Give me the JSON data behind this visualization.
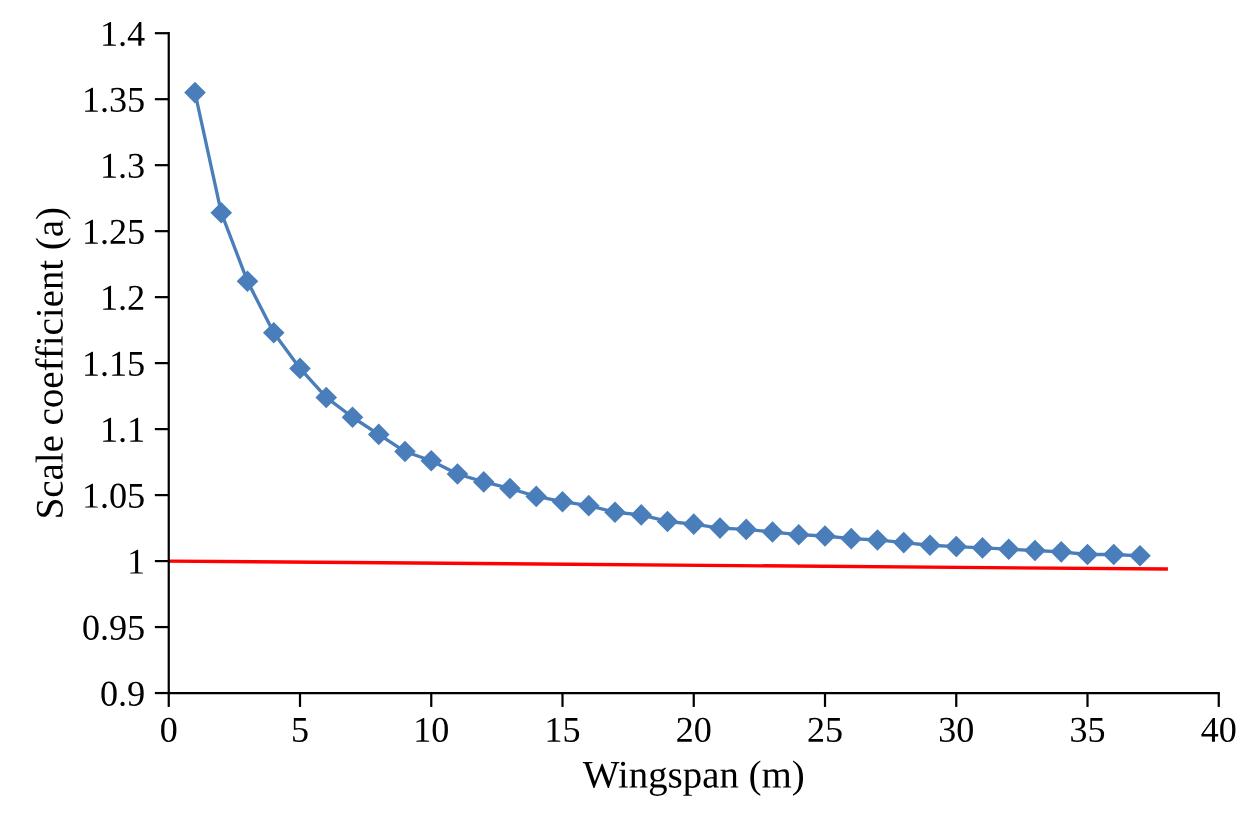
{
  "chart_data": {
    "type": "line",
    "xlabel": "Wingspan (m)",
    "ylabel": "Scale coefficient (a)",
    "xlim": [
      0,
      40
    ],
    "xticks": [
      0,
      5,
      10,
      15,
      20,
      25,
      30,
      35,
      40
    ],
    "ylim": [
      0.9,
      1.4
    ],
    "yticks": [
      0.9,
      0.95,
      1,
      1.05,
      1.1,
      1.15,
      1.2,
      1.25,
      1.3,
      1.35,
      1.4
    ],
    "grid": false,
    "series": [
      {
        "color": "#4a7ebb",
        "marker": "diamond",
        "x": [
          1,
          2,
          3,
          4,
          5,
          6,
          7,
          8,
          9,
          10,
          11,
          12,
          13,
          14,
          15,
          16,
          17,
          18,
          19,
          20,
          21,
          22,
          23,
          24,
          25,
          26,
          27,
          28,
          29,
          30,
          31,
          32,
          33,
          34,
          35,
          36,
          37
        ],
        "values": [
          1.355,
          1.264,
          1.212,
          1.173,
          1.146,
          1.124,
          1.109,
          1.096,
          1.083,
          1.076,
          1.066,
          1.06,
          1.055,
          1.049,
          1.045,
          1.042,
          1.037,
          1.035,
          1.03,
          1.028,
          1.025,
          1.024,
          1.022,
          1.02,
          1.019,
          1.017,
          1.016,
          1.014,
          1.012,
          1.011,
          1.01,
          1.009,
          1.008,
          1.007,
          1.005,
          1.005,
          1.004
        ]
      },
      {
        "color": "#ff0000",
        "marker": "none",
        "x": [
          0,
          38
        ],
        "values": [
          1,
          0.994
        ]
      }
    ]
  }
}
